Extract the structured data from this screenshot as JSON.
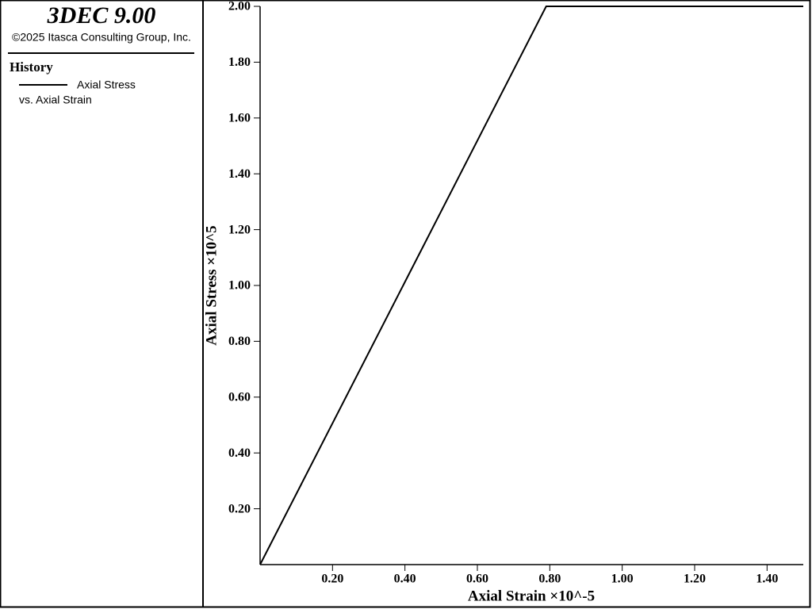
{
  "header": {
    "title": "3DEC 9.00",
    "copyright": "©2025 Itasca Consulting Group, Inc."
  },
  "legend": {
    "heading": "History",
    "lines": [
      "Axial Stress",
      "vs. Axial Strain"
    ]
  },
  "chart_data": {
    "type": "line",
    "xlabel": "Axial Strain ×10^-5",
    "ylabel": "Axial Stress ×10^5",
    "x": [
      0,
      0.79,
      1.5
    ],
    "series": [
      {
        "color": "#000000",
        "values": [
          0,
          2.0,
          2.0
        ]
      }
    ],
    "xlim": [
      0,
      1.5
    ],
    "ylim": [
      0,
      2.0
    ],
    "xticks": [
      {
        "value": 0.2,
        "label": "0.20"
      },
      {
        "value": 0.4,
        "label": "0.40"
      },
      {
        "value": 0.6,
        "label": "0.60"
      },
      {
        "value": 0.8,
        "label": "0.80"
      },
      {
        "value": 1.0,
        "label": "1.00"
      },
      {
        "value": 1.2,
        "label": "1.20"
      },
      {
        "value": 1.4,
        "label": "1.40"
      }
    ],
    "yticks": [
      {
        "value": 0.2,
        "label": "0.20"
      },
      {
        "value": 0.4,
        "label": "0.40"
      },
      {
        "value": 0.6,
        "label": "0.60"
      },
      {
        "value": 0.8,
        "label": "0.80"
      },
      {
        "value": 1.0,
        "label": "1.00"
      },
      {
        "value": 1.2,
        "label": "1.20"
      },
      {
        "value": 1.4,
        "label": "1.40"
      },
      {
        "value": 1.6,
        "label": "1.60"
      },
      {
        "value": 1.8,
        "label": "1.80"
      },
      {
        "value": 2.0,
        "label": "2.00"
      }
    ]
  }
}
